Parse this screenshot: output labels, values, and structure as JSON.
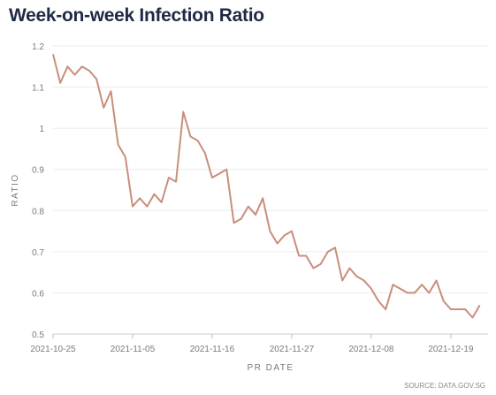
{
  "chart_data": {
    "type": "line",
    "title": "Week-on-week Infection Ratio",
    "xlabel": "PR DATE",
    "ylabel": "RATIO",
    "source": "SOURCE: DATA.GOV.SG",
    "ylim": [
      0.5,
      1.2
    ],
    "yticks": [
      "0.5",
      "0.6",
      "0.7",
      "0.8",
      "0.9",
      "1",
      "1.1",
      "1.2"
    ],
    "xticks": [
      "2021-10-25",
      "2021-11-05",
      "2021-11-16",
      "2021-11-27",
      "2021-12-08",
      "2021-12-19"
    ],
    "grid": true,
    "line_color": "#c98e7b",
    "x": [
      "2021-10-25",
      "2021-10-26",
      "2021-10-27",
      "2021-10-28",
      "2021-10-29",
      "2021-10-30",
      "2021-10-31",
      "2021-11-01",
      "2021-11-02",
      "2021-11-03",
      "2021-11-04",
      "2021-11-05",
      "2021-11-06",
      "2021-11-07",
      "2021-11-08",
      "2021-11-09",
      "2021-11-10",
      "2021-11-11",
      "2021-11-12",
      "2021-11-13",
      "2021-11-14",
      "2021-11-15",
      "2021-11-16",
      "2021-11-17",
      "2021-11-18",
      "2021-11-19",
      "2021-11-20",
      "2021-11-21",
      "2021-11-22",
      "2021-11-23",
      "2021-11-24",
      "2021-11-25",
      "2021-11-26",
      "2021-11-27",
      "2021-11-28",
      "2021-11-29",
      "2021-11-30",
      "2021-12-01",
      "2021-12-02",
      "2021-12-03",
      "2021-12-04",
      "2021-12-05",
      "2021-12-06",
      "2021-12-07",
      "2021-12-08",
      "2021-12-09",
      "2021-12-10",
      "2021-12-11",
      "2021-12-12",
      "2021-12-13",
      "2021-12-14",
      "2021-12-15",
      "2021-12-16",
      "2021-12-17",
      "2021-12-18",
      "2021-12-19",
      "2021-12-20",
      "2021-12-21",
      "2021-12-22",
      "2021-12-23"
    ],
    "series": [
      {
        "values": [
          1.18,
          1.11,
          1.15,
          1.13,
          1.15,
          1.14,
          1.12,
          1.05,
          1.09,
          0.96,
          0.93,
          0.81,
          0.83,
          0.81,
          0.84,
          0.82,
          0.88,
          0.87,
          1.04,
          0.98,
          0.97,
          0.94,
          0.88,
          0.89,
          0.9,
          0.77,
          0.78,
          0.81,
          0.79,
          0.83,
          0.75,
          0.72,
          0.74,
          0.75,
          0.69,
          0.69,
          0.66,
          0.67,
          0.7,
          0.71,
          0.63,
          0.66,
          0.64,
          0.63,
          0.61,
          0.58,
          0.56,
          0.62,
          0.61,
          0.6,
          0.6,
          0.62,
          0.6,
          0.63,
          0.58,
          0.56,
          0.56,
          0.56,
          0.54,
          0.57
        ]
      }
    ]
  }
}
